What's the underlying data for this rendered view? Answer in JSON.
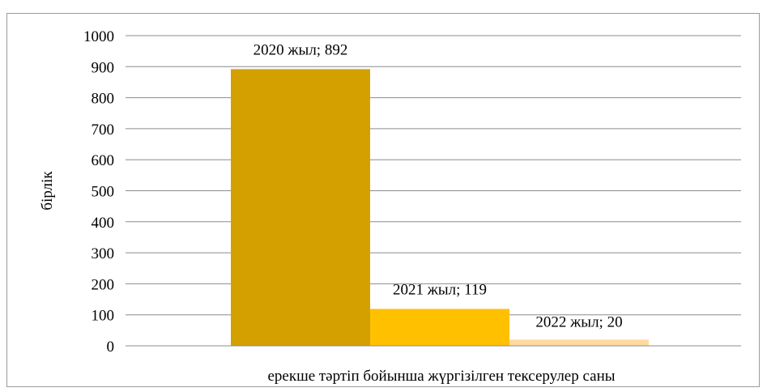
{
  "chart_data": {
    "type": "bar",
    "categories": [
      "ерекше тәртіп бойынша жүргізілген  тексерулер саны"
    ],
    "series": [
      {
        "name": "2020  жыл",
        "values": [
          892
        ],
        "color": "#D4A000",
        "label": "2020  жыл; 892"
      },
      {
        "name": "2021  жыл",
        "values": [
          119
        ],
        "color": "#FFC000",
        "label": "2021  жыл; 119"
      },
      {
        "name": "2022  жыл",
        "values": [
          20
        ],
        "color": "#FFD9A0",
        "label": "2022  жыл; 20"
      }
    ],
    "title": "",
    "xlabel": "",
    "ylabel": "бірлік",
    "ylim": [
      0,
      1000
    ],
    "yticks": [
      0,
      100,
      200,
      300,
      400,
      500,
      600,
      700,
      800,
      900,
      1000
    ],
    "grid": true,
    "legend": "none"
  }
}
